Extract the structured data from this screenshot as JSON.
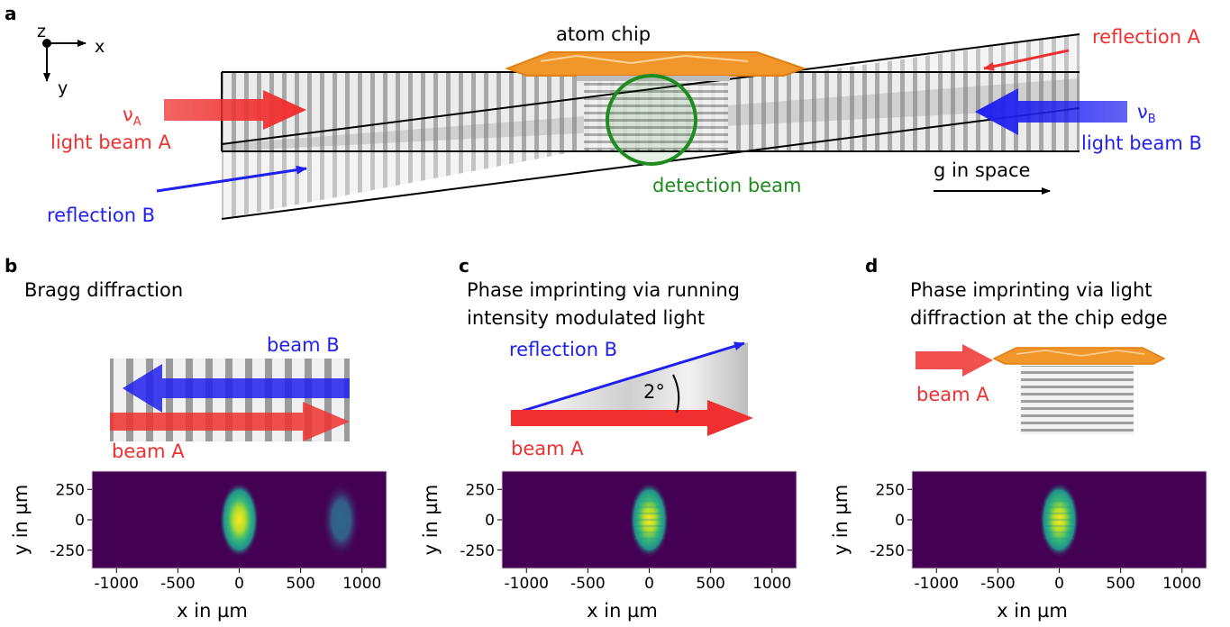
{
  "panels": {
    "a": "a",
    "b": "b",
    "c": "c",
    "d": "d"
  },
  "panel_a": {
    "axis_z": "z",
    "axis_x": "x",
    "axis_y": "y",
    "atom_chip": "atom chip",
    "reflection_a": "reflection A",
    "nu": "ν",
    "nu_a_sub": "A",
    "nu_b_sub": "B",
    "light_beam_a": "light beam A",
    "light_beam_b": "light beam B",
    "reflection_b": "reflection B",
    "detection_beam": "detection beam",
    "gravity": "g in space"
  },
  "panel_b": {
    "title": "Bragg diffraction",
    "beam_b": "beam B",
    "beam_a": "beam A"
  },
  "panel_c": {
    "title_line1": "Phase imprinting via running",
    "title_line2": "intensity modulated light",
    "reflection_b": "reflection B",
    "angle": "2°",
    "beam_a": "beam A"
  },
  "panel_d": {
    "title_line1": "Phase imprinting via light",
    "title_line2": "diffraction at the chip edge",
    "beam_a": "beam A"
  },
  "colors": {
    "red": "#f03030",
    "blue": "#2020f0",
    "green": "#1e8c1e",
    "chip": "#f0962a",
    "heatmap_bg": "#440154"
  },
  "chart_data": [
    {
      "type": "heatmap",
      "panel": "b",
      "xlabel": "x in µm",
      "ylabel": "y in µm",
      "xlim": [
        -1200,
        1200
      ],
      "ylim": [
        -400,
        400
      ],
      "x_ticks": [
        "-1000",
        "-500",
        "0",
        "500",
        "1000"
      ],
      "y_ticks": [
        "250",
        "0",
        "-250"
      ],
      "clouds": [
        {
          "x": 0,
          "y": 0,
          "relative_intensity": 1.0,
          "fringes": false
        },
        {
          "x": 830,
          "y": 0,
          "relative_intensity": 0.4,
          "fringes": false
        }
      ]
    },
    {
      "type": "heatmap",
      "panel": "c",
      "xlabel": "x in µm",
      "ylabel": "y in µm",
      "xlim": [
        -1200,
        1200
      ],
      "ylim": [
        -400,
        400
      ],
      "x_ticks": [
        "-1000",
        "-500",
        "0",
        "500",
        "1000"
      ],
      "y_ticks": [
        "250",
        "0",
        "-250"
      ],
      "clouds": [
        {
          "x": 0,
          "y": 0,
          "relative_intensity": 1.0,
          "fringes": true
        }
      ]
    },
    {
      "type": "heatmap",
      "panel": "d",
      "xlabel": "x in µm",
      "ylabel": "y in µm",
      "xlim": [
        -1200,
        1200
      ],
      "ylim": [
        -400,
        400
      ],
      "x_ticks": [
        "-1000",
        "-500",
        "0",
        "500",
        "1000"
      ],
      "y_ticks": [
        "250",
        "0",
        "-250"
      ],
      "clouds": [
        {
          "x": 0,
          "y": 0,
          "relative_intensity": 1.0,
          "fringes": true
        }
      ]
    }
  ]
}
